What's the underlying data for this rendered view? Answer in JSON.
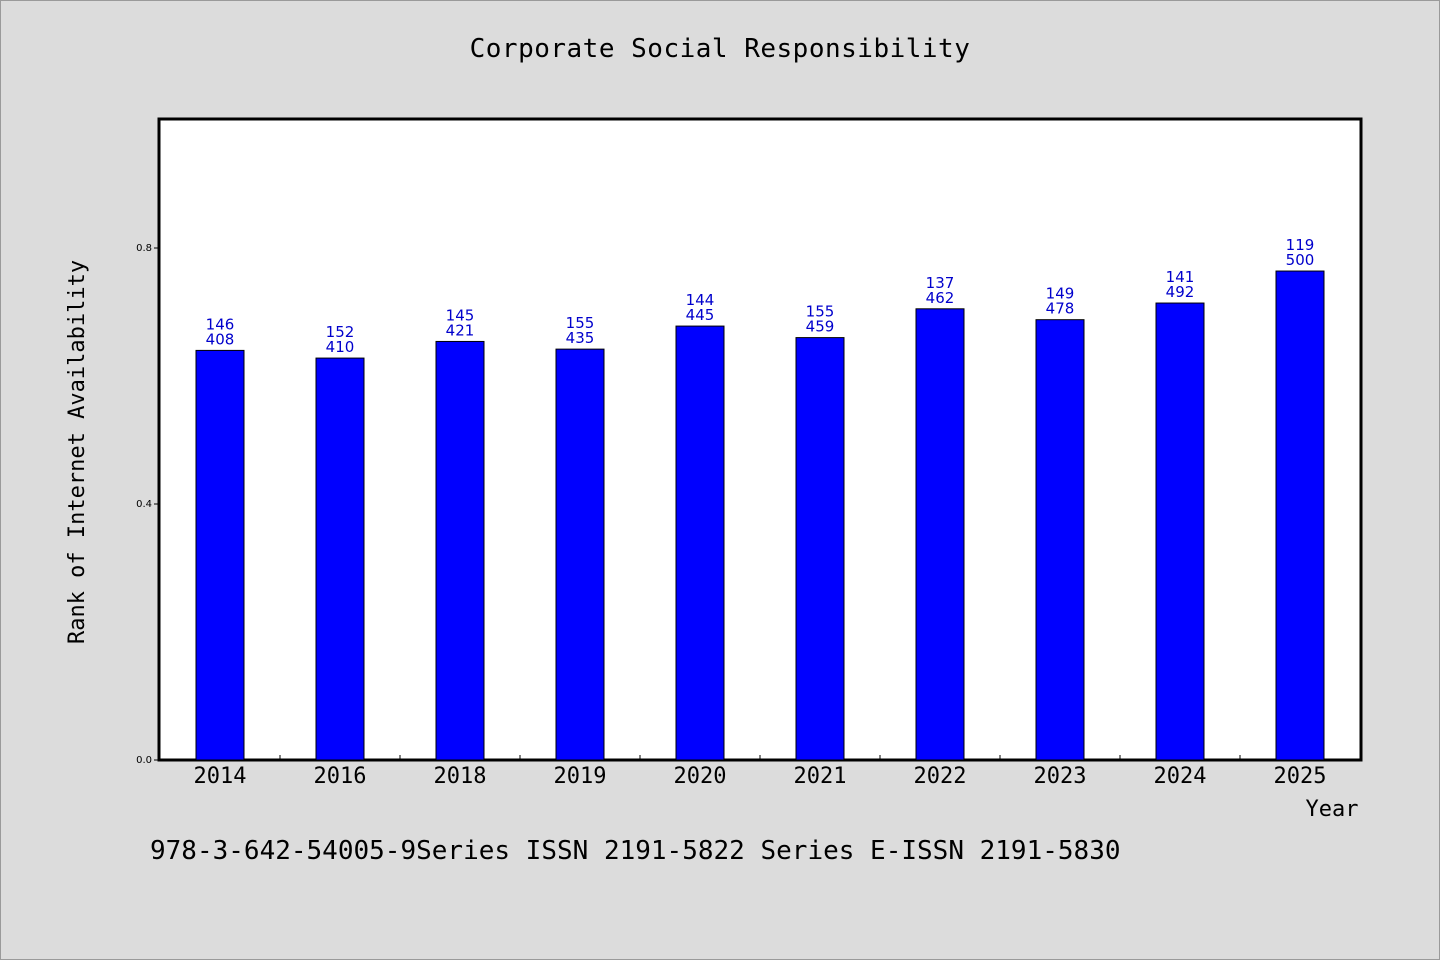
{
  "chart_data": {
    "type": "bar",
    "title": "Corporate Social Responsibility",
    "xlabel": "Year",
    "ylabel": "Rank of Internet Availability",
    "categories": [
      "2014",
      "2016",
      "2018",
      "2019",
      "2020",
      "2021",
      "2022",
      "2023",
      "2024",
      "2025"
    ],
    "values": [
      0.64,
      0.628,
      0.654,
      0.642,
      0.678,
      0.66,
      0.705,
      0.688,
      0.714,
      0.764
    ],
    "data_labels_top": [
      "146",
      "152",
      "145",
      "155",
      "144",
      "155",
      "137",
      "149",
      "141",
      "119"
    ],
    "data_labels_bottom": [
      "408",
      "410",
      "421",
      "435",
      "445",
      "459",
      "462",
      "478",
      "492",
      "500"
    ],
    "ylim": [
      0,
      1.0
    ],
    "yticks": [
      0.0,
      0.4,
      0.8
    ],
    "ytick_labels": [
      "0.0",
      "0.4",
      "0.8"
    ],
    "bar_color": "#0000ff",
    "label_color": "#0000cc",
    "grid": false,
    "legend": "none"
  },
  "footer": "978-3-642-54005-9Series ISSN 2191-5822 Series E-ISSN 2191-5830"
}
